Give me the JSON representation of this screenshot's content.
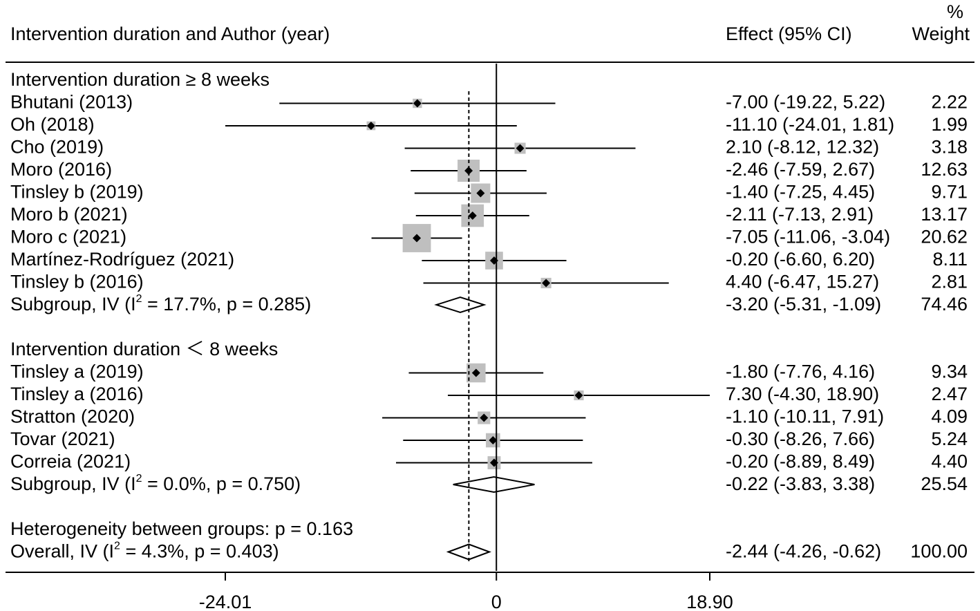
{
  "chart_data": {
    "type": "forest",
    "header": {
      "label_col": "Intervention duration and Author (year)",
      "effect_col": "Effect (95% CI)",
      "weight_col_line1": "%",
      "weight_col_line2": "Weight"
    },
    "x_min": -24.01,
    "x_max": 18.9,
    "null_value": 0,
    "overall_effect": -2.44,
    "ticks": [
      {
        "value": -24.01,
        "label": "-24.01"
      },
      {
        "value": 0,
        "label": "0"
      },
      {
        "value": 18.9,
        "label": "18.90"
      }
    ],
    "rows": [
      {
        "kind": "header",
        "label": "Intervention duration ≥ 8 weeks"
      },
      {
        "kind": "study",
        "label": "Bhutani (2013)",
        "effect": -7.0,
        "lo": -19.22,
        "hi": 5.22,
        "ci_text": "-7.00 (-19.22, 5.22)",
        "weight": 2.22,
        "weight_text": "2.22"
      },
      {
        "kind": "study",
        "label": "Oh (2018)",
        "effect": -11.1,
        "lo": -24.01,
        "hi": 1.81,
        "ci_text": "-11.10 (-24.01, 1.81)",
        "weight": 1.99,
        "weight_text": "1.99"
      },
      {
        "kind": "study",
        "label": "Cho (2019)",
        "effect": 2.1,
        "lo": -8.12,
        "hi": 12.32,
        "ci_text": "2.10 (-8.12, 12.32)",
        "weight": 3.18,
        "weight_text": "3.18"
      },
      {
        "kind": "study",
        "label": "Moro (2016)",
        "effect": -2.46,
        "lo": -7.59,
        "hi": 2.67,
        "ci_text": "-2.46 (-7.59, 2.67)",
        "weight": 12.63,
        "weight_text": "12.63"
      },
      {
        "kind": "study",
        "label": "Tinsley b (2019)",
        "effect": -1.4,
        "lo": -7.25,
        "hi": 4.45,
        "ci_text": "-1.40 (-7.25, 4.45)",
        "weight": 9.71,
        "weight_text": "9.71"
      },
      {
        "kind": "study",
        "label": "Moro b (2021)",
        "effect": -2.11,
        "lo": -7.13,
        "hi": 2.91,
        "ci_text": "-2.11 (-7.13, 2.91)",
        "weight": 13.17,
        "weight_text": "13.17"
      },
      {
        "kind": "study",
        "label": "Moro c (2021)",
        "effect": -7.05,
        "lo": -11.06,
        "hi": -3.04,
        "ci_text": "-7.05 (-11.06, -3.04)",
        "weight": 20.62,
        "weight_text": "20.62"
      },
      {
        "kind": "study",
        "label": "Martínez-Rodríguez (2021)",
        "effect": -0.2,
        "lo": -6.6,
        "hi": 6.2,
        "ci_text": "-0.20 (-6.60, 6.20)",
        "weight": 8.11,
        "weight_text": "8.11"
      },
      {
        "kind": "study",
        "label": "Tinsley b (2016)",
        "effect": 4.4,
        "lo": -6.47,
        "hi": 15.27,
        "ci_text": "4.40 (-6.47, 15.27)",
        "weight": 2.81,
        "weight_text": "2.81"
      },
      {
        "kind": "subgroup",
        "label_pre": "Subgroup, IV (I",
        "label_sup": "2",
        "label_post": " = 17.7%, p = 0.285)",
        "effect": -3.2,
        "lo": -5.31,
        "hi": -1.09,
        "ci_text": "-3.20 (-5.31, -1.09)",
        "weight_text": "74.46"
      },
      {
        "kind": "blank"
      },
      {
        "kind": "header",
        "label": "Intervention duration ＜ 8 weeks"
      },
      {
        "kind": "study",
        "label": "Tinsley a (2019)",
        "effect": -1.8,
        "lo": -7.76,
        "hi": 4.16,
        "ci_text": "-1.80 (-7.76, 4.16)",
        "weight": 9.34,
        "weight_text": "9.34"
      },
      {
        "kind": "study",
        "label": "Tinsley a (2016)",
        "effect": 7.3,
        "lo": -4.3,
        "hi": 18.9,
        "ci_text": "7.30 (-4.30, 18.90)",
        "weight": 2.47,
        "weight_text": "2.47"
      },
      {
        "kind": "study",
        "label": "Stratton (2020)",
        "effect": -1.1,
        "lo": -10.11,
        "hi": 7.91,
        "ci_text": "-1.10 (-10.11, 7.91)",
        "weight": 4.09,
        "weight_text": "4.09"
      },
      {
        "kind": "study",
        "label": "Tovar (2021)",
        "effect": -0.3,
        "lo": -8.26,
        "hi": 7.66,
        "ci_text": "-0.30 (-8.26, 7.66)",
        "weight": 5.24,
        "weight_text": "5.24"
      },
      {
        "kind": "study",
        "label": "Correia (2021)",
        "effect": -0.2,
        "lo": -8.89,
        "hi": 8.49,
        "ci_text": "-0.20 (-8.89, 8.49)",
        "weight": 4.4,
        "weight_text": "4.40"
      },
      {
        "kind": "subgroup",
        "label_pre": "Subgroup, IV (I",
        "label_sup": "2",
        "label_post": " = 0.0%, p = 0.750)",
        "effect": -0.22,
        "lo": -3.83,
        "hi": 3.38,
        "ci_text": "-0.22 (-3.83, 3.38)",
        "weight_text": "25.54"
      },
      {
        "kind": "blank"
      },
      {
        "kind": "note",
        "label": "Heterogeneity between groups: p = 0.163"
      },
      {
        "kind": "overall",
        "label_pre": "Overall, IV (I",
        "label_sup": "2",
        "label_post": " = 4.3%, p = 0.403)",
        "effect": -2.44,
        "lo": -4.26,
        "hi": -0.62,
        "ci_text": "-2.44 (-4.26, -0.62)",
        "weight_text": "100.00"
      }
    ]
  }
}
